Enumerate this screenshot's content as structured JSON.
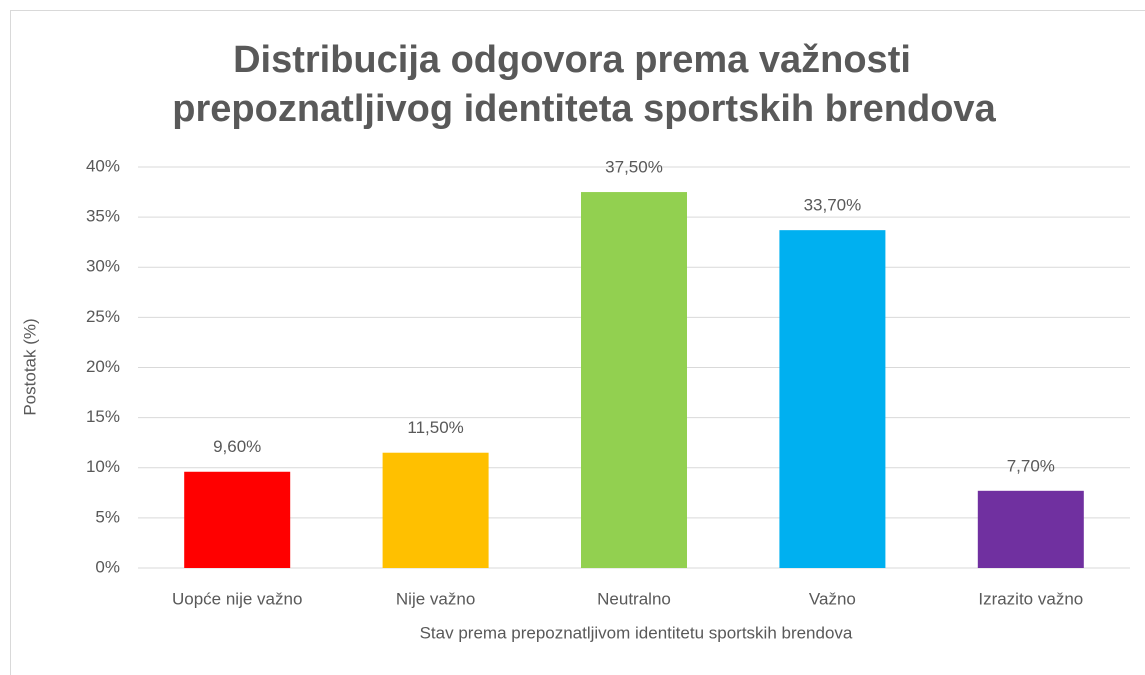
{
  "chart_data": {
    "type": "bar",
    "title": [
      "Distribucija odgovora prema važnosti",
      "prepoznatljivog identiteta sportskih brendova"
    ],
    "x_label": "Stav prema prepoznatljivom identitetu sportskih brendova",
    "y_label": "Postotak (%)",
    "categories": [
      "Uopće nije važno",
      "Nije važno",
      "Neutralno",
      "Važno",
      "Izrazito važno"
    ],
    "values": [
      9.6,
      11.5,
      37.5,
      33.7,
      7.7
    ],
    "value_labels": [
      "9,60%",
      "11,50%",
      "37,50%",
      "33,70%",
      "7,70%"
    ],
    "colors": [
      "#ff0000",
      "#ffc000",
      "#92d050",
      "#00b0f0",
      "#7030a0"
    ],
    "ylim": [
      0,
      40
    ],
    "yticks": [
      {
        "value": 0,
        "label": "0%"
      },
      {
        "value": 5,
        "label": "5%"
      },
      {
        "value": 10,
        "label": "10%"
      },
      {
        "value": 15,
        "label": "15%"
      },
      {
        "value": 20,
        "label": "20%"
      },
      {
        "value": 25,
        "label": "25%"
      },
      {
        "value": 30,
        "label": "30%"
      },
      {
        "value": 35,
        "label": "35%"
      },
      {
        "value": 40,
        "label": "40%"
      }
    ],
    "grid": true
  }
}
